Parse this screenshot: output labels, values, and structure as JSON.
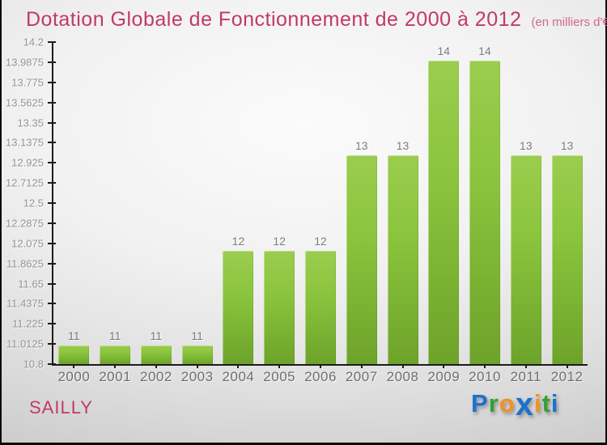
{
  "header": {
    "title": "Dotation Globale de Fonctionnement de 2000 à 2012",
    "subtitle": "(en milliers d'€)"
  },
  "footer": {
    "place": "SAILLY",
    "logo": {
      "name": "Proxiti",
      "letters": [
        {
          "ch": "P",
          "color": "#1b72cd",
          "big": false
        },
        {
          "ch": "r",
          "color": "#33a033",
          "big": false
        },
        {
          "ch": "o",
          "color": "#f5911e",
          "big": false
        },
        {
          "ch": "x",
          "color": "#1b72cd",
          "big": true
        },
        {
          "ch": "i",
          "color": "#f5911e",
          "big": false
        },
        {
          "ch": "t",
          "color": "#33a033",
          "big": false
        },
        {
          "ch": "i",
          "color": "#1b72cd",
          "big": false
        }
      ]
    }
  },
  "colors": {
    "title_color": "#c23a63",
    "subtitle_color": "#d2688c",
    "axis_color": "#1c1c1c",
    "ytick_color": "#949494",
    "xtick_color": "#6e6e6e",
    "value_color": "#7b7b7b",
    "place_color": "#c23a63",
    "bar_top": "#9bcd4e",
    "bar_mid": "#8ac43d",
    "bar_bottom": "#6da32a"
  },
  "chart_data": {
    "type": "bar",
    "title": "Dotation Globale de Fonctionnement de 2000 à 2012",
    "subtitle": "(en milliers d'€)",
    "xlabel": "",
    "ylabel": "",
    "grid": false,
    "legend": false,
    "categories": [
      "2000",
      "2001",
      "2002",
      "2003",
      "2004",
      "2005",
      "2006",
      "2007",
      "2008",
      "2009",
      "2010",
      "2011",
      "2012"
    ],
    "values": [
      11,
      11,
      11,
      11,
      12,
      12,
      12,
      13,
      13,
      14,
      14,
      13,
      13
    ],
    "value_labels": [
      "11",
      "11",
      "11",
      "11",
      "12",
      "12",
      "12",
      "13",
      "13",
      "14",
      "14",
      "13",
      "13"
    ],
    "ylim": [
      10.8,
      14.2
    ],
    "ytick_labels": [
      "10.8",
      "11.0125",
      "11.225",
      "11.4375",
      "11.65",
      "11.8625",
      "12.075",
      "12.2875",
      "12.5",
      "12.7125",
      "12.925",
      "13.1375",
      "13.35",
      "13.5625",
      "13.775",
      "13.9875",
      "14.2"
    ]
  }
}
